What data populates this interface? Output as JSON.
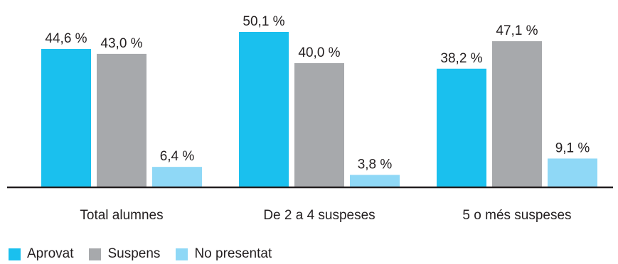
{
  "chart_data": {
    "type": "bar",
    "categories": [
      "Total alumnes",
      "De 2 a 4 suspeses",
      "5 o més suspeses"
    ],
    "series": [
      {
        "name": "Aprovat",
        "values": [
          44.6,
          50.1,
          38.2
        ],
        "labels": [
          "44,6 %",
          "50,1 %",
          "38,2 %"
        ],
        "color": "#1ac0ee"
      },
      {
        "name": "Suspens",
        "values": [
          43.0,
          40.0,
          47.1
        ],
        "labels": [
          "43,0 %",
          "40,0 %",
          "47,1 %"
        ],
        "color": "#a7a9ac"
      },
      {
        "name": "No presentat",
        "values": [
          6.4,
          3.8,
          9.1
        ],
        "labels": [
          "6,4 %",
          "3,8 %",
          "9,1 %"
        ],
        "color": "#8fd8f6"
      }
    ],
    "title": "",
    "xlabel": "",
    "ylabel": "",
    "ylim": [
      0,
      50.1
    ],
    "grid": false,
    "legend_position": "bottom-left"
  }
}
